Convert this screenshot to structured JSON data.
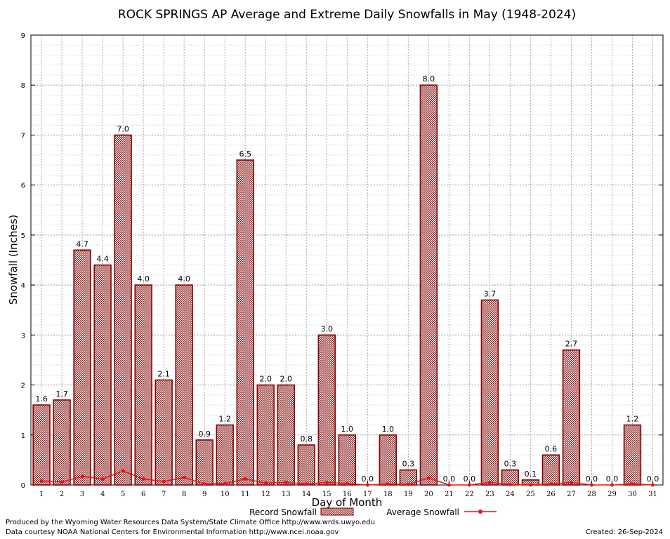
{
  "chart_data": {
    "type": "bar",
    "title": "ROCK SPRINGS AP Average and Extreme Daily Snowfalls in May (1948-2024)",
    "xlabel": "Day of Month",
    "ylabel": "Snowfall (Inches)",
    "ylim": [
      0,
      9
    ],
    "yticks": [
      "0",
      "1",
      "2",
      "3",
      "4",
      "5",
      "6",
      "7",
      "8",
      "9"
    ],
    "categories": [
      "1",
      "2",
      "3",
      "4",
      "5",
      "6",
      "7",
      "8",
      "9",
      "10",
      "11",
      "12",
      "13",
      "14",
      "15",
      "16",
      "17",
      "18",
      "19",
      "20",
      "21",
      "22",
      "23",
      "24",
      "25",
      "26",
      "27",
      "28",
      "29",
      "30",
      "31"
    ],
    "series": [
      {
        "name": "Record Snowfall",
        "kind": "bar",
        "values": [
          1.6,
          1.7,
          4.7,
          4.4,
          7.0,
          4.0,
          2.1,
          4.0,
          0.9,
          1.2,
          6.5,
          2.0,
          2.0,
          0.8,
          3.0,
          1.0,
          0.0,
          1.0,
          0.3,
          8.0,
          0.0,
          0.0,
          3.7,
          0.3,
          0.1,
          0.6,
          2.7,
          0.0,
          0.0,
          1.2,
          0.0
        ],
        "labels": [
          "1.6",
          "1.7",
          "4.7",
          "4.4",
          "7.0",
          "4.0",
          "2.1",
          "4.0",
          "0.9",
          "1.2",
          "6.5",
          "2.0",
          "2.0",
          "0.8",
          "3.0",
          "1.0",
          "0.0",
          "1.0",
          "0.3",
          "8.0",
          "0.0",
          "0.0",
          "3.7",
          "0.3",
          "0.1",
          "0.6",
          "2.7",
          "0.0",
          "0.0",
          "1.2",
          "0.0"
        ]
      },
      {
        "name": "Average Snowfall",
        "kind": "line",
        "values": [
          0.08,
          0.06,
          0.17,
          0.12,
          0.28,
          0.12,
          0.07,
          0.15,
          0.02,
          0.03,
          0.12,
          0.04,
          0.05,
          0.02,
          0.05,
          0.03,
          0.0,
          0.02,
          0.01,
          0.14,
          0.0,
          0.0,
          0.05,
          0.01,
          0.0,
          0.02,
          0.05,
          0.0,
          0.0,
          0.02,
          0.0
        ]
      }
    ],
    "colors": {
      "bar_fill": "#a06060",
      "bar_border": "#8b0000",
      "line": "#ee1111",
      "grid": "#aaaaaa"
    },
    "legend": {
      "placement": "bottom-center"
    }
  },
  "footer": {
    "produced_by": "Produced by the Wyoming Water Resources Data System/State Climate Office http://www.wrds.uwyo.edu",
    "data_courtesy": "Data courtesy NOAA National Centers for Environmental Information http://www.ncei.noaa.gov",
    "created": "Created:  26-Sep-2024"
  }
}
